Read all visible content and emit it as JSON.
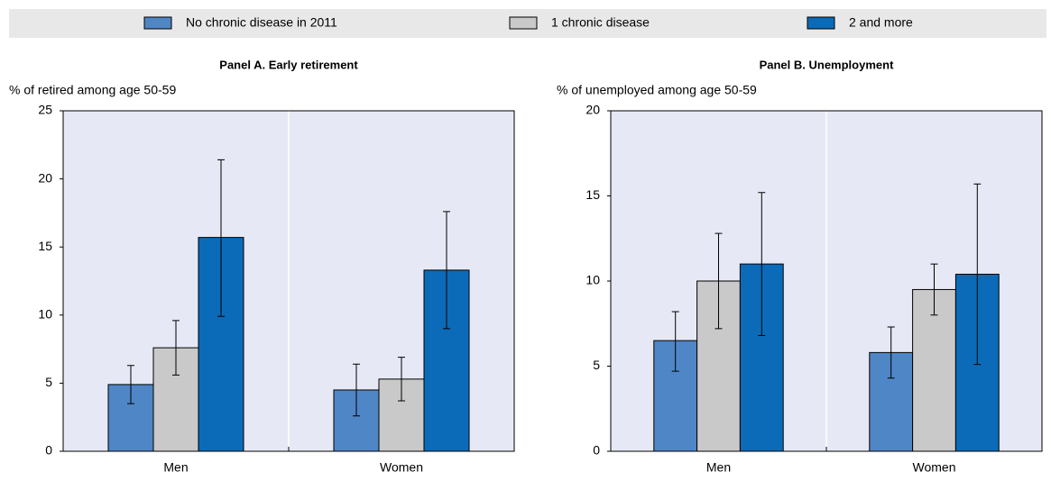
{
  "chart_data": [
    {
      "type": "bar",
      "title": "Panel A. Early retirement",
      "y_label": "% of retired among age 50-59",
      "categories": [
        "Men",
        "Women"
      ],
      "series": [
        {
          "name": "No chronic disease in 2011",
          "color": "#4f86c6",
          "values": [
            4.9,
            4.5
          ],
          "lower": [
            3.5,
            2.6
          ],
          "upper": [
            6.3,
            6.4
          ]
        },
        {
          "name": "1 chronic disease",
          "color": "#c9c9c9",
          "values": [
            7.6,
            5.3
          ],
          "lower": [
            5.6,
            3.7
          ],
          "upper": [
            9.6,
            6.9
          ]
        },
        {
          "name": "2 and more",
          "color": "#0b6bb8",
          "values": [
            15.7,
            13.3
          ],
          "lower": [
            9.9,
            9.0
          ],
          "upper": [
            21.4,
            17.6
          ]
        }
      ],
      "ylim": [
        0,
        25
      ],
      "yticks": [
        0,
        5,
        10,
        15,
        20,
        25
      ],
      "grid": false
    },
    {
      "type": "bar",
      "title": "Panel B. Unemployment",
      "y_label": "% of unemployed among age 50-59",
      "categories": [
        "Men",
        "Women"
      ],
      "series": [
        {
          "color": "#4f86c6",
          "values": [
            6.5,
            5.8
          ],
          "lower": [
            4.7,
            4.3
          ],
          "upper": [
            8.2,
            7.3
          ]
        },
        {
          "color": "#c9c9c9",
          "values": [
            10.0,
            9.5
          ],
          "lower": [
            7.2,
            8.0
          ],
          "upper": [
            12.8,
            11.0
          ]
        },
        {
          "color": "#0b6bb8",
          "values": [
            11.0,
            10.4
          ],
          "lower": [
            6.8,
            5.1
          ],
          "upper": [
            15.2,
            15.7
          ]
        }
      ],
      "ylim": [
        0,
        20
      ],
      "yticks": [
        0,
        5,
        10,
        15,
        20
      ],
      "grid": false
    }
  ]
}
